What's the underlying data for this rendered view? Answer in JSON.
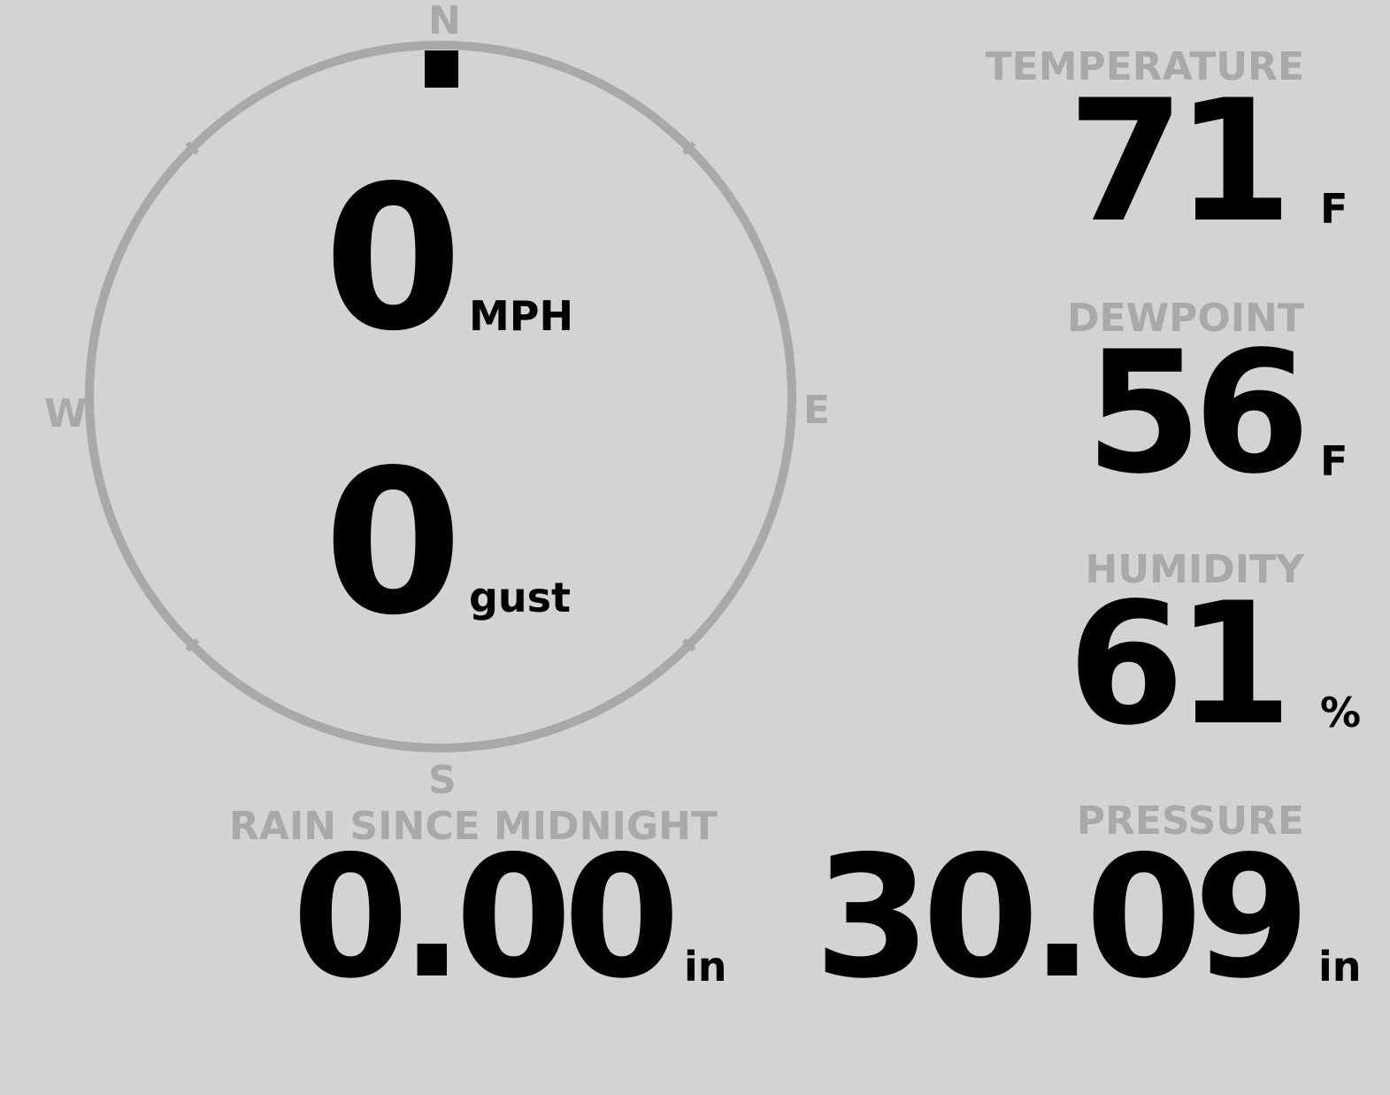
{
  "wind": {
    "speed": "0",
    "speed_unit": "MPH",
    "gust": "0",
    "gust_unit": "gust",
    "direction_deg": 0,
    "compass": {
      "n": "N",
      "e": "E",
      "s": "S",
      "w": "W"
    }
  },
  "temperature": {
    "label": "TEMPERATURE",
    "value": "71",
    "unit": "F"
  },
  "dewpoint": {
    "label": "DEWPOINT",
    "value": "56",
    "unit": "F"
  },
  "humidity": {
    "label": "HUMIDITY",
    "value": "61",
    "unit": "%"
  },
  "rain": {
    "label": "RAIN SINCE MIDNIGHT",
    "value": "0.00",
    "unit": "in"
  },
  "pressure": {
    "label": "PRESSURE",
    "value": "30.09",
    "unit": "in"
  },
  "colors": {
    "background": "#d3d3d3",
    "label": "#a9a9a9",
    "value": "#000000"
  }
}
